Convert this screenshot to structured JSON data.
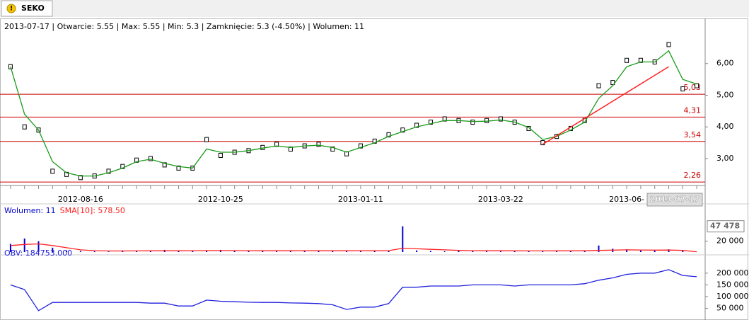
{
  "tab": "SEKO",
  "header": "2013-07-17 | Otwarcie: 5.55 | Max: 5.55 | Min: 5.3 | Zamknięcie: 5.3 (-4.50%)  | Wolumen: 11",
  "chart_data": [
    {
      "type": "line",
      "categories": [
        null,
        null,
        null,
        null,
        null,
        "2012-08-16",
        null,
        null,
        null,
        null,
        null,
        null,
        null,
        null,
        null,
        "2012-10-25",
        null,
        null,
        null,
        null,
        null,
        null,
        null,
        null,
        null,
        "2013-01-11",
        null,
        null,
        null,
        null,
        null,
        null,
        null,
        null,
        null,
        "2013-03-22",
        null,
        null,
        null,
        null,
        null,
        null,
        null,
        null,
        "2013-06-",
        null,
        null,
        null,
        null,
        null
      ],
      "cursor_date": "2013-07-17",
      "series": [
        {
          "name": "close",
          "color": "#000000",
          "values": [
            5.9,
            4.0,
            3.9,
            2.6,
            2.5,
            2.4,
            2.45,
            2.6,
            2.75,
            2.95,
            3.0,
            2.8,
            2.7,
            2.7,
            3.6,
            3.1,
            3.2,
            3.25,
            3.35,
            3.45,
            3.3,
            3.4,
            3.45,
            3.3,
            3.15,
            3.4,
            3.55,
            3.75,
            3.9,
            4.05,
            4.15,
            4.25,
            4.2,
            4.15,
            4.2,
            4.25,
            4.15,
            3.95,
            3.5,
            3.7,
            3.95,
            4.2,
            5.3,
            5.4,
            6.1,
            6.1,
            6.05,
            6.6,
            5.2,
            5.3
          ]
        },
        {
          "name": "sma",
          "color": "#1a9a1a",
          "values": [
            5.9,
            4.4,
            3.9,
            2.9,
            2.55,
            2.45,
            2.45,
            2.55,
            2.7,
            2.9,
            2.98,
            2.85,
            2.75,
            2.7,
            3.3,
            3.2,
            3.2,
            3.25,
            3.33,
            3.4,
            3.35,
            3.4,
            3.42,
            3.35,
            3.2,
            3.35,
            3.5,
            3.7,
            3.85,
            4.0,
            4.1,
            4.2,
            4.2,
            4.17,
            4.18,
            4.22,
            4.15,
            3.98,
            3.6,
            3.7,
            3.9,
            4.15,
            4.9,
            5.3,
            5.9,
            6.05,
            6.05,
            6.4,
            5.5,
            5.35
          ]
        }
      ],
      "ylim": [
        2.15,
        7.0
      ],
      "yticks": [
        {
          "value": 3,
          "label": "3,00"
        },
        {
          "value": 4,
          "label": "4,00"
        },
        {
          "value": 5,
          "label": "5,00"
        },
        {
          "value": 6,
          "label": "6,00"
        }
      ],
      "levels": [
        {
          "value": 5.03,
          "label": "5,03"
        },
        {
          "value": 4.31,
          "label": "4,31"
        },
        {
          "value": 3.54,
          "label": "3,54"
        },
        {
          "value": 2.26,
          "label": "2,26"
        }
      ],
      "level_color": "#cc0000",
      "trendline": {
        "x": [
          38,
          47
        ],
        "y": [
          3.45,
          5.9
        ],
        "color": "#ff2020"
      }
    },
    {
      "type": "bar",
      "legend": [
        "Wolumen: 11",
        "SMA[10]: 578.50"
      ],
      "series": [
        {
          "name": "Wolumen",
          "color": "#0000cc",
          "values": [
            15000,
            25000,
            20000,
            8000,
            3000,
            2000,
            1500,
            1000,
            3000,
            2500,
            2000,
            4000,
            2000,
            3000,
            2500,
            4000,
            2000,
            3000,
            2000,
            1500,
            2500,
            3000,
            2000,
            1500,
            3000,
            2500,
            2000,
            3000,
            47478,
            3000,
            2000,
            1500,
            3000,
            2500,
            2000,
            1500,
            2000,
            2500,
            1500,
            2500,
            2000,
            3000,
            12000,
            6000,
            5000,
            3000,
            3000,
            5000,
            3000,
            11
          ]
        },
        {
          "name": "SMA[10]",
          "color": "#ff2020",
          "values": [
            12000,
            14000,
            15000,
            12000,
            8000,
            4000,
            2500,
            2000,
            2000,
            2100,
            2200,
            2400,
            2300,
            2500,
            2600,
            2700,
            2600,
            2500,
            2400,
            2300,
            2400,
            2500,
            2400,
            2300,
            2400,
            2500,
            2400,
            2500,
            7000,
            6000,
            5000,
            4000,
            3000,
            2500,
            2400,
            2300,
            2200,
            2100,
            2100,
            2200,
            2200,
            2300,
            3000,
            3500,
            4000,
            3800,
            3500,
            3600,
            3000,
            578.5
          ]
        }
      ],
      "ylim": [
        0,
        66667
      ],
      "yticks": [
        {
          "value": 20000,
          "label": "20 000"
        }
      ],
      "max_label": {
        "value": 47478,
        "label": "47 478"
      }
    },
    {
      "type": "line",
      "legend": [
        "OBV: 184753.000"
      ],
      "series": [
        {
          "name": "OBV",
          "color": "#2020dd",
          "values": [
            150000,
            130000,
            40000,
            75000,
            75000,
            75000,
            75000,
            75000,
            75000,
            75000,
            72000,
            72000,
            60000,
            60000,
            85000,
            80000,
            78000,
            76000,
            75000,
            75000,
            73000,
            72000,
            70000,
            65000,
            45000,
            55000,
            55000,
            70000,
            140000,
            140000,
            145000,
            145000,
            145000,
            150000,
            150000,
            150000,
            145000,
            150000,
            150000,
            150000,
            150000,
            155000,
            170000,
            180000,
            195000,
            200000,
            200000,
            215000,
            190000,
            184753
          ]
        }
      ],
      "ylim": [
        0,
        263000
      ],
      "yticks": [
        {
          "value": 50000,
          "label": "50 000"
        },
        {
          "value": 100000,
          "label": "100 000"
        },
        {
          "value": 150000,
          "label": "150 000"
        },
        {
          "value": 200000,
          "label": "200 000"
        }
      ]
    }
  ]
}
